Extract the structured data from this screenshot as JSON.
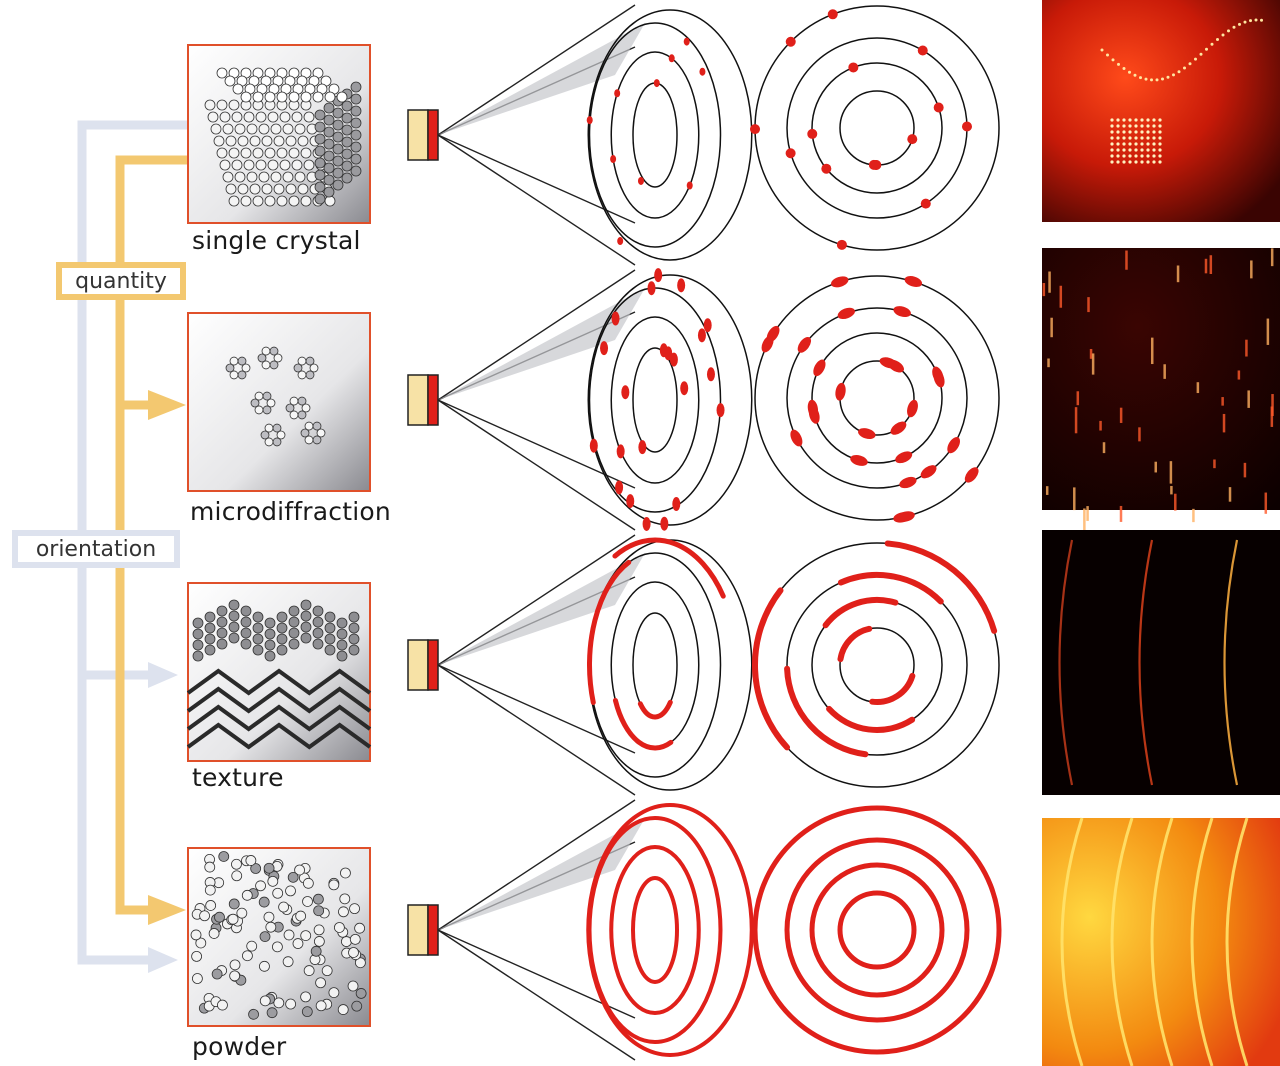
{
  "axes": {
    "quantity": "quantity",
    "orientation": "orientation"
  },
  "rows": [
    {
      "label": "single crystal",
      "pattern": "spots"
    },
    {
      "label": "microdiffraction",
      "pattern": "streaks"
    },
    {
      "label": "texture",
      "pattern": "arcs"
    },
    {
      "label": "powder",
      "pattern": "rings"
    }
  ],
  "colors": {
    "quantity_arrow": "#f3c870",
    "orientation_arrow": "#dde2ee",
    "diffraction_red": "#e0201a",
    "sample_border": "#e0502a",
    "source_body": "#f7e2a6"
  }
}
